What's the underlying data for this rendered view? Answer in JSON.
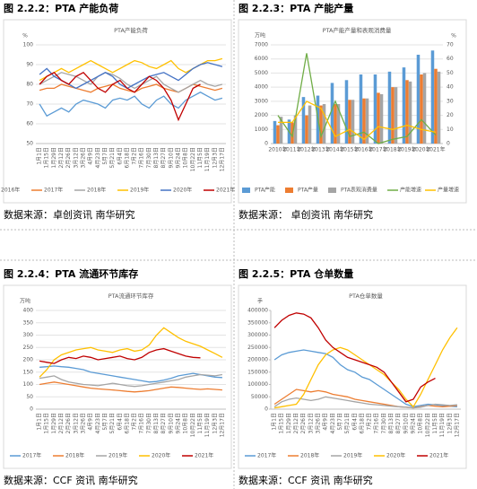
{
  "figures": [
    {
      "caption": "图 2.2.2：PTA 产能负荷",
      "source": "数据来源：卓创资讯 南华研究"
    },
    {
      "caption": "图 2.2.3：PTA 产能产量",
      "source": "数据来源： 卓创资讯 南华研究"
    },
    {
      "caption": "图 2.2.4：PTA 流通环节库存",
      "source": "数据来源：CCF 资讯 南华研究"
    },
    {
      "caption": "图 2.2.5：PTA 仓单数量",
      "source": "数据来源：CCF 资讯 南华研究"
    }
  ],
  "chart_data": [
    {
      "type": "line",
      "title": "PTA产能负荷",
      "y_label": "%",
      "ylim": [
        50,
        100
      ],
      "yticks": [
        50,
        60,
        70,
        80,
        90,
        100
      ],
      "grid": true,
      "categories": [
        "1月1日",
        "1月15日",
        "1月29日",
        "2月12日",
        "2月26日",
        "3月12日",
        "3月26日",
        "4月9日",
        "4月23日",
        "5月7日",
        "5月21日",
        "6月4日",
        "6月18日",
        "7月2日",
        "7月16日",
        "7月30日",
        "8月13日",
        "8月27日",
        "9月10日",
        "9月24日",
        "10月8日",
        "10月22日",
        "11月5日",
        "11月19日",
        "12月3日",
        "12月17日"
      ],
      "series": [
        {
          "name": "2016年",
          "color": "#5b9bd5",
          "values": [
            70,
            64,
            66,
            68,
            66,
            70,
            72,
            71,
            70,
            68,
            72,
            73,
            72,
            74,
            70,
            68,
            72,
            74,
            70,
            68,
            72,
            74,
            76,
            74,
            72,
            73
          ]
        },
        {
          "name": "2017年",
          "color": "#ed7d31",
          "values": [
            77,
            78,
            78,
            80,
            79,
            78,
            77,
            76,
            78,
            79,
            80,
            78,
            77,
            76,
            78,
            79,
            80,
            78,
            77,
            76,
            78,
            80,
            79,
            78,
            77,
            78
          ]
        },
        {
          "name": "2018年",
          "color": "#a5a5a5",
          "values": [
            80,
            82,
            84,
            86,
            85,
            84,
            82,
            80,
            84,
            86,
            85,
            83,
            80,
            78,
            80,
            82,
            84,
            80,
            78,
            76,
            78,
            80,
            82,
            80,
            79,
            80
          ]
        },
        {
          "name": "2019年",
          "color": "#ffc000",
          "values": [
            82,
            84,
            86,
            88,
            86,
            88,
            90,
            92,
            90,
            88,
            86,
            88,
            90,
            92,
            91,
            89,
            88,
            90,
            92,
            88,
            86,
            88,
            90,
            92,
            92,
            93
          ]
        },
        {
          "name": "2020年",
          "color": "#4472c4",
          "values": [
            85,
            88,
            84,
            82,
            80,
            78,
            80,
            82,
            84,
            86,
            84,
            80,
            78,
            80,
            82,
            84,
            85,
            86,
            84,
            82,
            85,
            88,
            90,
            91,
            90,
            89
          ]
        },
        {
          "name": "2021年",
          "color": "#c00000",
          "values": [
            80,
            84,
            86,
            82,
            80,
            84,
            86,
            82,
            78,
            76,
            80,
            82,
            78,
            76,
            80,
            84,
            82,
            78,
            72,
            62,
            70,
            78,
            80,
            null,
            null,
            null
          ]
        }
      ]
    },
    {
      "type": "bar",
      "title": "PTA产能产量和表观消费量",
      "y_label": "万吨",
      "y2_label": "%",
      "ylim": [
        0,
        7000
      ],
      "yticks": [
        0,
        1000,
        2000,
        3000,
        4000,
        5000,
        6000,
        7000
      ],
      "y2lim": [
        0,
        70
      ],
      "y2ticks": [
        0,
        10,
        20,
        30,
        40,
        50,
        60,
        70
      ],
      "grid": true,
      "categories": [
        "2010年",
        "2011年",
        "2012年",
        "2013年",
        "2014年",
        "2015年",
        "2016年",
        "2017年",
        "2018年",
        "2019年",
        "2020年",
        "2021年"
      ],
      "series": [
        {
          "name": "PTA产能",
          "color": "#5b9bd5",
          "values": [
            1600,
            1700,
            3300,
            3400,
            4300,
            4500,
            4900,
            4900,
            5100,
            5400,
            6300,
            6600
          ]
        },
        {
          "name": "PTA产量",
          "color": "#ed7d31",
          "values": [
            1300,
            1500,
            2000,
            2700,
            2800,
            3100,
            3200,
            3600,
            4000,
            4500,
            4900,
            5300
          ]
        },
        {
          "name": "PTA表观消费量",
          "color": "#a5a5a5",
          "values": [
            1900,
            2000,
            2700,
            2800,
            2800,
            3100,
            3200,
            3500,
            4000,
            4400,
            5000,
            5100
          ]
        },
        {
          "name": "产能增速",
          "color": "#70ad47",
          "axis": "y2",
          "values": [
            20,
            5,
            64,
            5,
            30,
            5,
            8,
            0,
            3,
            5,
            17,
            6
          ]
        },
        {
          "name": "产量增速",
          "color": "#ffc000",
          "axis": "y2",
          "values": [
            15,
            15,
            30,
            25,
            5,
            10,
            3,
            12,
            10,
            13,
            10,
            8
          ]
        }
      ]
    },
    {
      "type": "line",
      "title": "PTA流通环节库存",
      "y_label": "万吨",
      "ylim": [
        0,
        400
      ],
      "yticks": [
        0,
        50,
        100,
        150,
        200,
        250,
        300,
        350,
        400
      ],
      "grid": true,
      "categories": [
        "1月1日",
        "1月15日",
        "1月29日",
        "2月12日",
        "2月26日",
        "3月12日",
        "3月26日",
        "4月9日",
        "4月23日",
        "5月7日",
        "5月21日",
        "6月4日",
        "6月18日",
        "7月2日",
        "7月16日",
        "7月30日",
        "8月13日",
        "8月27日",
        "9月10日",
        "9月24日",
        "10月8日",
        "10月22日",
        "11月5日",
        "11月19日",
        "12月3日",
        "12月17日"
      ],
      "series": [
        {
          "name": "2017年",
          "color": "#5b9bd5",
          "values": [
            170,
            172,
            175,
            172,
            170,
            165,
            160,
            150,
            145,
            140,
            135,
            130,
            125,
            120,
            115,
            110,
            112,
            118,
            125,
            135,
            140,
            145,
            140,
            135,
            130,
            128
          ]
        },
        {
          "name": "2018年",
          "color": "#ed7d31",
          "values": [
            100,
            105,
            110,
            105,
            100,
            95,
            90,
            85,
            82,
            80,
            78,
            75,
            72,
            70,
            72,
            75,
            80,
            85,
            90,
            88,
            85,
            82,
            80,
            82,
            80,
            78
          ]
        },
        {
          "name": "2019年",
          "color": "#a5a5a5",
          "values": [
            125,
            130,
            135,
            120,
            110,
            105,
            100,
            98,
            95,
            100,
            105,
            100,
            95,
            92,
            95,
            100,
            105,
            110,
            115,
            120,
            130,
            135,
            140,
            138,
            135,
            140
          ]
        },
        {
          "name": "2020年",
          "color": "#ffc000",
          "values": [
            130,
            160,
            200,
            220,
            230,
            240,
            245,
            250,
            240,
            235,
            230,
            240,
            245,
            235,
            240,
            260,
            300,
            330,
            310,
            290,
            275,
            265,
            255,
            240,
            225,
            210
          ]
        },
        {
          "name": "2021年",
          "color": "#c00000",
          "values": [
            195,
            190,
            185,
            200,
            210,
            205,
            215,
            210,
            200,
            205,
            210,
            215,
            205,
            200,
            210,
            230,
            240,
            245,
            235,
            225,
            215,
            210,
            208,
            null,
            null,
            null
          ]
        }
      ]
    },
    {
      "type": "line",
      "title": "PTA仓单数量",
      "y_label": "手",
      "ylim": [
        0,
        400000
      ],
      "yticks": [
        0,
        50000,
        100000,
        150000,
        200000,
        250000,
        300000,
        350000,
        400000
      ],
      "grid": false,
      "categories": [
        "1月1日",
        "1月15日",
        "1月29日",
        "2月12日",
        "2月26日",
        "3月12日",
        "3月26日",
        "4月9日",
        "4月23日",
        "5月7日",
        "5月21日",
        "6月4日",
        "6月18日",
        "7月2日",
        "7月16日",
        "7月30日",
        "8月13日",
        "8月27日",
        "9月10日",
        "9月24日",
        "10月8日",
        "10月22日",
        "11月5日",
        "11月19日",
        "12月3日",
        "12月17日"
      ],
      "series": [
        {
          "name": "2017年",
          "color": "#5b9bd5",
          "values": [
            200000,
            220000,
            230000,
            235000,
            240000,
            235000,
            230000,
            225000,
            210000,
            180000,
            160000,
            150000,
            130000,
            120000,
            100000,
            80000,
            60000,
            40000,
            20000,
            10000,
            15000,
            20000,
            18000,
            15000,
            12000,
            10000
          ]
        },
        {
          "name": "2018年",
          "color": "#ed7d31",
          "values": [
            20000,
            40000,
            60000,
            80000,
            75000,
            70000,
            75000,
            70000,
            60000,
            55000,
            50000,
            40000,
            35000,
            30000,
            25000,
            20000,
            15000,
            10000,
            8000,
            5000,
            10000,
            15000,
            12000,
            10000,
            12000,
            15000
          ]
        },
        {
          "name": "2019年",
          "color": "#a5a5a5",
          "values": [
            10000,
            30000,
            40000,
            45000,
            40000,
            35000,
            40000,
            50000,
            45000,
            40000,
            35000,
            30000,
            25000,
            20000,
            18000,
            15000,
            12000,
            10000,
            8000,
            5000,
            8000,
            15000,
            20000,
            18000,
            15000,
            18000
          ]
        },
        {
          "name": "2020年",
          "color": "#ffc000",
          "values": [
            5000,
            10000,
            15000,
            20000,
            60000,
            120000,
            180000,
            220000,
            240000,
            250000,
            240000,
            220000,
            200000,
            180000,
            160000,
            140000,
            110000,
            80000,
            40000,
            10000,
            60000,
            120000,
            180000,
            240000,
            290000,
            330000
          ]
        },
        {
          "name": "2021年",
          "color": "#c00000",
          "values": [
            330000,
            360000,
            380000,
            390000,
            385000,
            370000,
            330000,
            280000,
            250000,
            230000,
            210000,
            200000,
            190000,
            180000,
            170000,
            150000,
            110000,
            70000,
            30000,
            40000,
            90000,
            110000,
            125000,
            null,
            null,
            null
          ]
        }
      ]
    }
  ]
}
